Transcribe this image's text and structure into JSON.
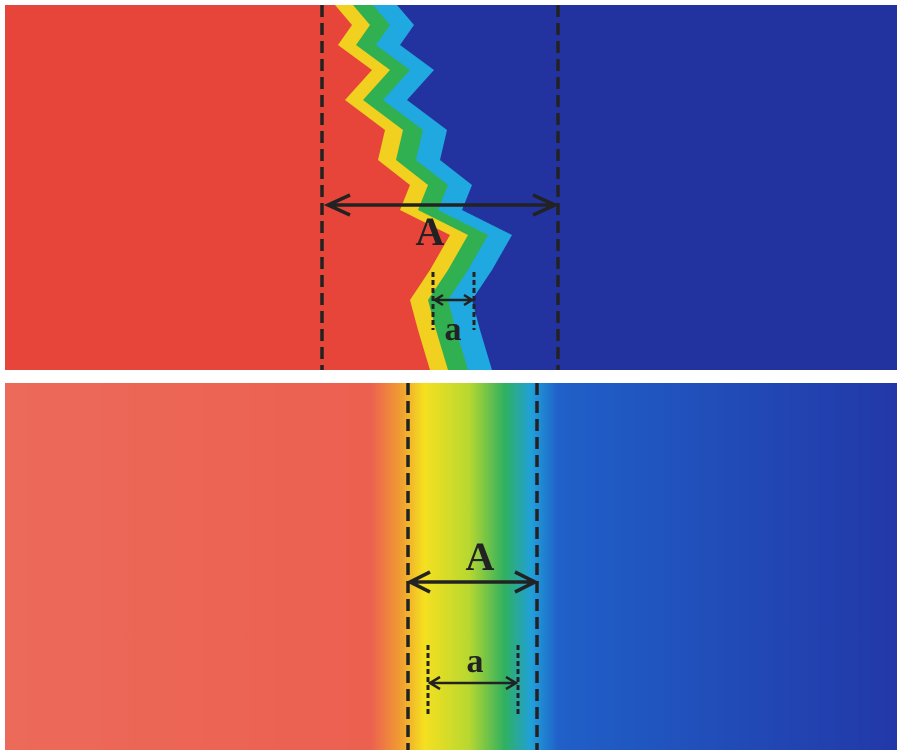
{
  "panels": [
    {
      "label_large": "A",
      "label_small": "a"
    },
    {
      "label_large": "A",
      "label_small": "a"
    }
  ]
}
